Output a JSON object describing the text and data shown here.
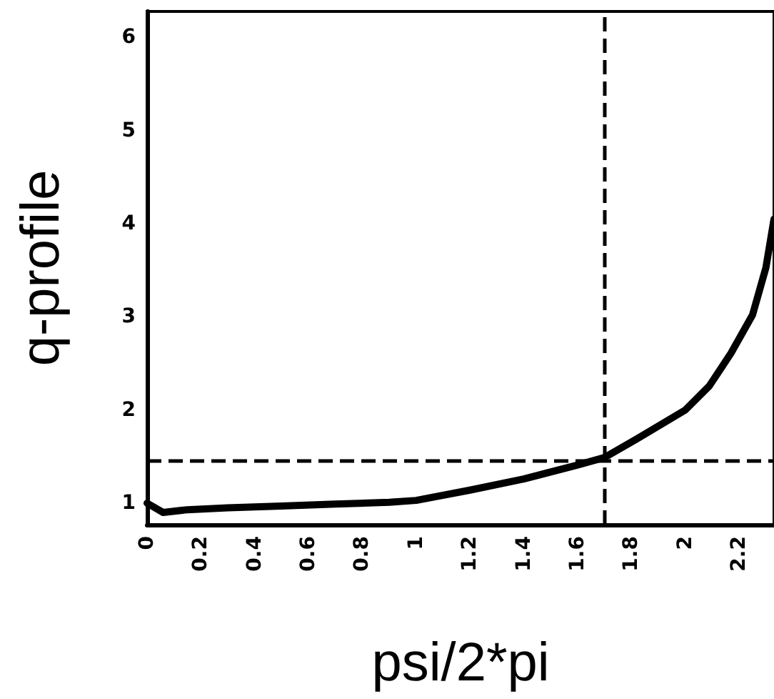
{
  "chart_data": {
    "type": "line",
    "xlabel": "psi/2*pi",
    "ylabel": "q-profile",
    "x": [
      0,
      0.06,
      0.15,
      0.3,
      0.5,
      0.7,
      0.9,
      1.0,
      1.2,
      1.4,
      1.6,
      1.7,
      1.82,
      2.0,
      2.09,
      2.17,
      2.25,
      2.3,
      2.33
    ],
    "series": [
      {
        "color": "#000000",
        "values": [
          1.0,
          0.9,
          0.93,
          0.95,
          0.97,
          0.99,
          1.01,
          1.03,
          1.14,
          1.26,
          1.41,
          1.49,
          1.69,
          2.0,
          2.26,
          2.61,
          3.02,
          3.53,
          4.05
        ]
      }
    ],
    "xlim": [
      0,
      2.33
    ],
    "ylim": [
      0.77,
      6.28
    ],
    "xticks": [
      0,
      0.2,
      0.4,
      0.6,
      0.8,
      1.0,
      1.2,
      1.4,
      1.6,
      1.8,
      2.0,
      2.2
    ],
    "yticks": [
      1,
      2,
      3,
      4,
      5,
      6
    ],
    "ref_lines": [
      {
        "axis": "x",
        "value": 1.7,
        "line_style": "dashed"
      },
      {
        "axis": "y",
        "value": 1.45,
        "line_style": "dashed"
      }
    ],
    "grid": false,
    "marker": "none",
    "line_style": "solid"
  }
}
